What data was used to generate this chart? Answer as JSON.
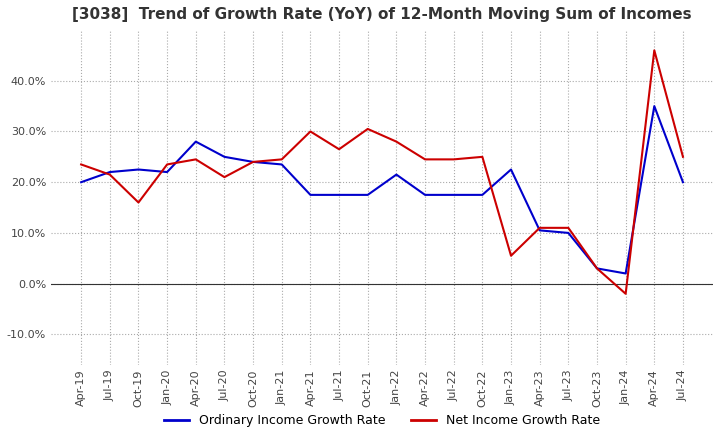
{
  "title": "[3038]  Trend of Growth Rate (YoY) of 12-Month Moving Sum of Incomes",
  "title_fontsize": 11,
  "ylim": [
    -16,
    50
  ],
  "yticks": [
    -10.0,
    0.0,
    10.0,
    20.0,
    30.0,
    40.0
  ],
  "background_color": "#ffffff",
  "grid_color": "#aaaaaa",
  "ordinary_color": "#0000cc",
  "net_color": "#cc0000",
  "legend_labels": [
    "Ordinary Income Growth Rate",
    "Net Income Growth Rate"
  ],
  "x_labels": [
    "Apr-19",
    "Jul-19",
    "Oct-19",
    "Jan-20",
    "Apr-20",
    "Jul-20",
    "Oct-20",
    "Jan-21",
    "Apr-21",
    "Jul-21",
    "Oct-21",
    "Jan-22",
    "Apr-22",
    "Jul-22",
    "Oct-22",
    "Jan-23",
    "Apr-23",
    "Jul-23",
    "Oct-23",
    "Jan-24",
    "Apr-24",
    "Jul-24"
  ],
  "ordinary_income": [
    20.0,
    22.0,
    22.5,
    22.0,
    28.0,
    25.0,
    24.0,
    23.5,
    17.5,
    17.5,
    17.5,
    21.5,
    17.5,
    17.5,
    17.5,
    22.5,
    10.5,
    10.0,
    3.0,
    2.0,
    35.0,
    20.0
  ],
  "net_income": [
    23.5,
    21.5,
    16.0,
    23.5,
    24.5,
    21.0,
    24.0,
    24.5,
    30.0,
    26.5,
    30.5,
    28.0,
    24.5,
    24.5,
    25.0,
    5.5,
    11.0,
    11.0,
    3.0,
    -2.0,
    46.0,
    25.0
  ]
}
